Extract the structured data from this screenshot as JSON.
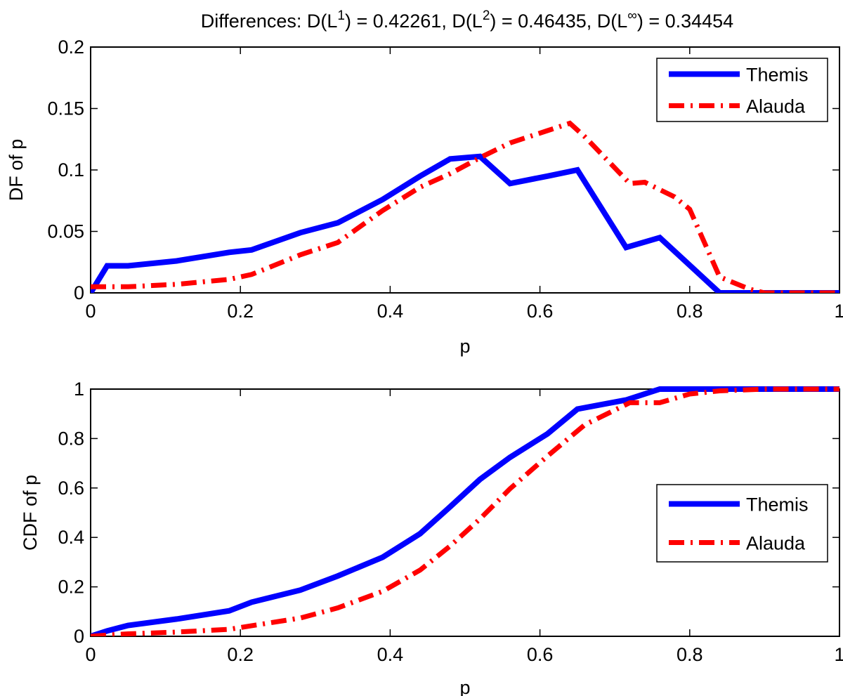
{
  "chart_data": [
    {
      "type": "line",
      "title_parts": {
        "prefix": "Differences: D(L",
        "sup1": "1",
        "mid1": ") = 0.42261, D(L",
        "sup2": "2",
        "mid2": ") = 0.46435, D(L",
        "sup3": "∞",
        "suffix": ") = 0.34454"
      },
      "xlabel": "p",
      "ylabel": "DF of p",
      "xlim": [
        0,
        1
      ],
      "ylim": [
        0,
        0.2
      ],
      "xticks": [
        "0",
        "0.2",
        "0.4",
        "0.6",
        "0.8",
        "1"
      ],
      "yticks": [
        "0",
        "0.05",
        "0.1",
        "0.15",
        "0.2"
      ],
      "legend_position": "top-right",
      "series": [
        {
          "name": "Themis",
          "color": "#0000ff",
          "style": "solid",
          "x": [
            0,
            0.022,
            0.05,
            0.115,
            0.185,
            0.215,
            0.28,
            0.33,
            0.39,
            0.44,
            0.48,
            0.52,
            0.56,
            0.61,
            0.65,
            0.715,
            0.76,
            0.84,
            0.88,
            1.0
          ],
          "y": [
            0,
            0.022,
            0.022,
            0.026,
            0.033,
            0.035,
            0.049,
            0.057,
            0.076,
            0.095,
            0.109,
            0.111,
            0.089,
            0.095,
            0.1,
            0.037,
            0.045,
            0,
            0,
            0
          ]
        },
        {
          "name": "Alauda",
          "color": "#ff0000",
          "style": "dashdot",
          "x": [
            0,
            0.022,
            0.05,
            0.115,
            0.185,
            0.215,
            0.28,
            0.33,
            0.39,
            0.44,
            0.48,
            0.52,
            0.56,
            0.61,
            0.64,
            0.66,
            0.72,
            0.74,
            0.78,
            0.8,
            0.84,
            0.88,
            0.9,
            1.0
          ],
          "y": [
            0.005,
            0.005,
            0.005,
            0.007,
            0.011,
            0.015,
            0.031,
            0.041,
            0.067,
            0.086,
            0.097,
            0.11,
            0.122,
            0.132,
            0.138,
            0.127,
            0.089,
            0.09,
            0.078,
            0.068,
            0.013,
            0.003,
            0,
            0
          ]
        }
      ]
    },
    {
      "type": "line",
      "xlabel": "p",
      "ylabel": "CDF of p",
      "xlim": [
        0,
        1
      ],
      "ylim": [
        0,
        1
      ],
      "xticks": [
        "0",
        "0.2",
        "0.4",
        "0.6",
        "0.8",
        "1"
      ],
      "yticks": [
        "0",
        "0.2",
        "0.4",
        "0.6",
        "0.8",
        "1"
      ],
      "legend_position": "middle-right",
      "series": [
        {
          "name": "Themis",
          "color": "#0000ff",
          "style": "solid",
          "x": [
            0,
            0.022,
            0.05,
            0.115,
            0.185,
            0.215,
            0.28,
            0.33,
            0.39,
            0.44,
            0.48,
            0.52,
            0.56,
            0.61,
            0.65,
            0.715,
            0.76,
            0.84,
            1.0
          ],
          "y": [
            0,
            0.022,
            0.044,
            0.07,
            0.103,
            0.138,
            0.187,
            0.244,
            0.32,
            0.415,
            0.524,
            0.635,
            0.724,
            0.819,
            0.919,
            0.956,
            1.0,
            1.0,
            1.0
          ]
        },
        {
          "name": "Alauda",
          "color": "#ff0000",
          "style": "dashdot",
          "x": [
            0,
            0.022,
            0.05,
            0.115,
            0.185,
            0.215,
            0.28,
            0.33,
            0.39,
            0.44,
            0.48,
            0.52,
            0.56,
            0.61,
            0.66,
            0.72,
            0.76,
            0.8,
            0.84,
            0.9,
            1.0
          ],
          "y": [
            0,
            0.005,
            0.01,
            0.017,
            0.028,
            0.043,
            0.074,
            0.115,
            0.182,
            0.268,
            0.365,
            0.475,
            0.597,
            0.729,
            0.856,
            0.945,
            0.945,
            0.98,
            0.993,
            1.0,
            1.0
          ]
        }
      ]
    }
  ]
}
